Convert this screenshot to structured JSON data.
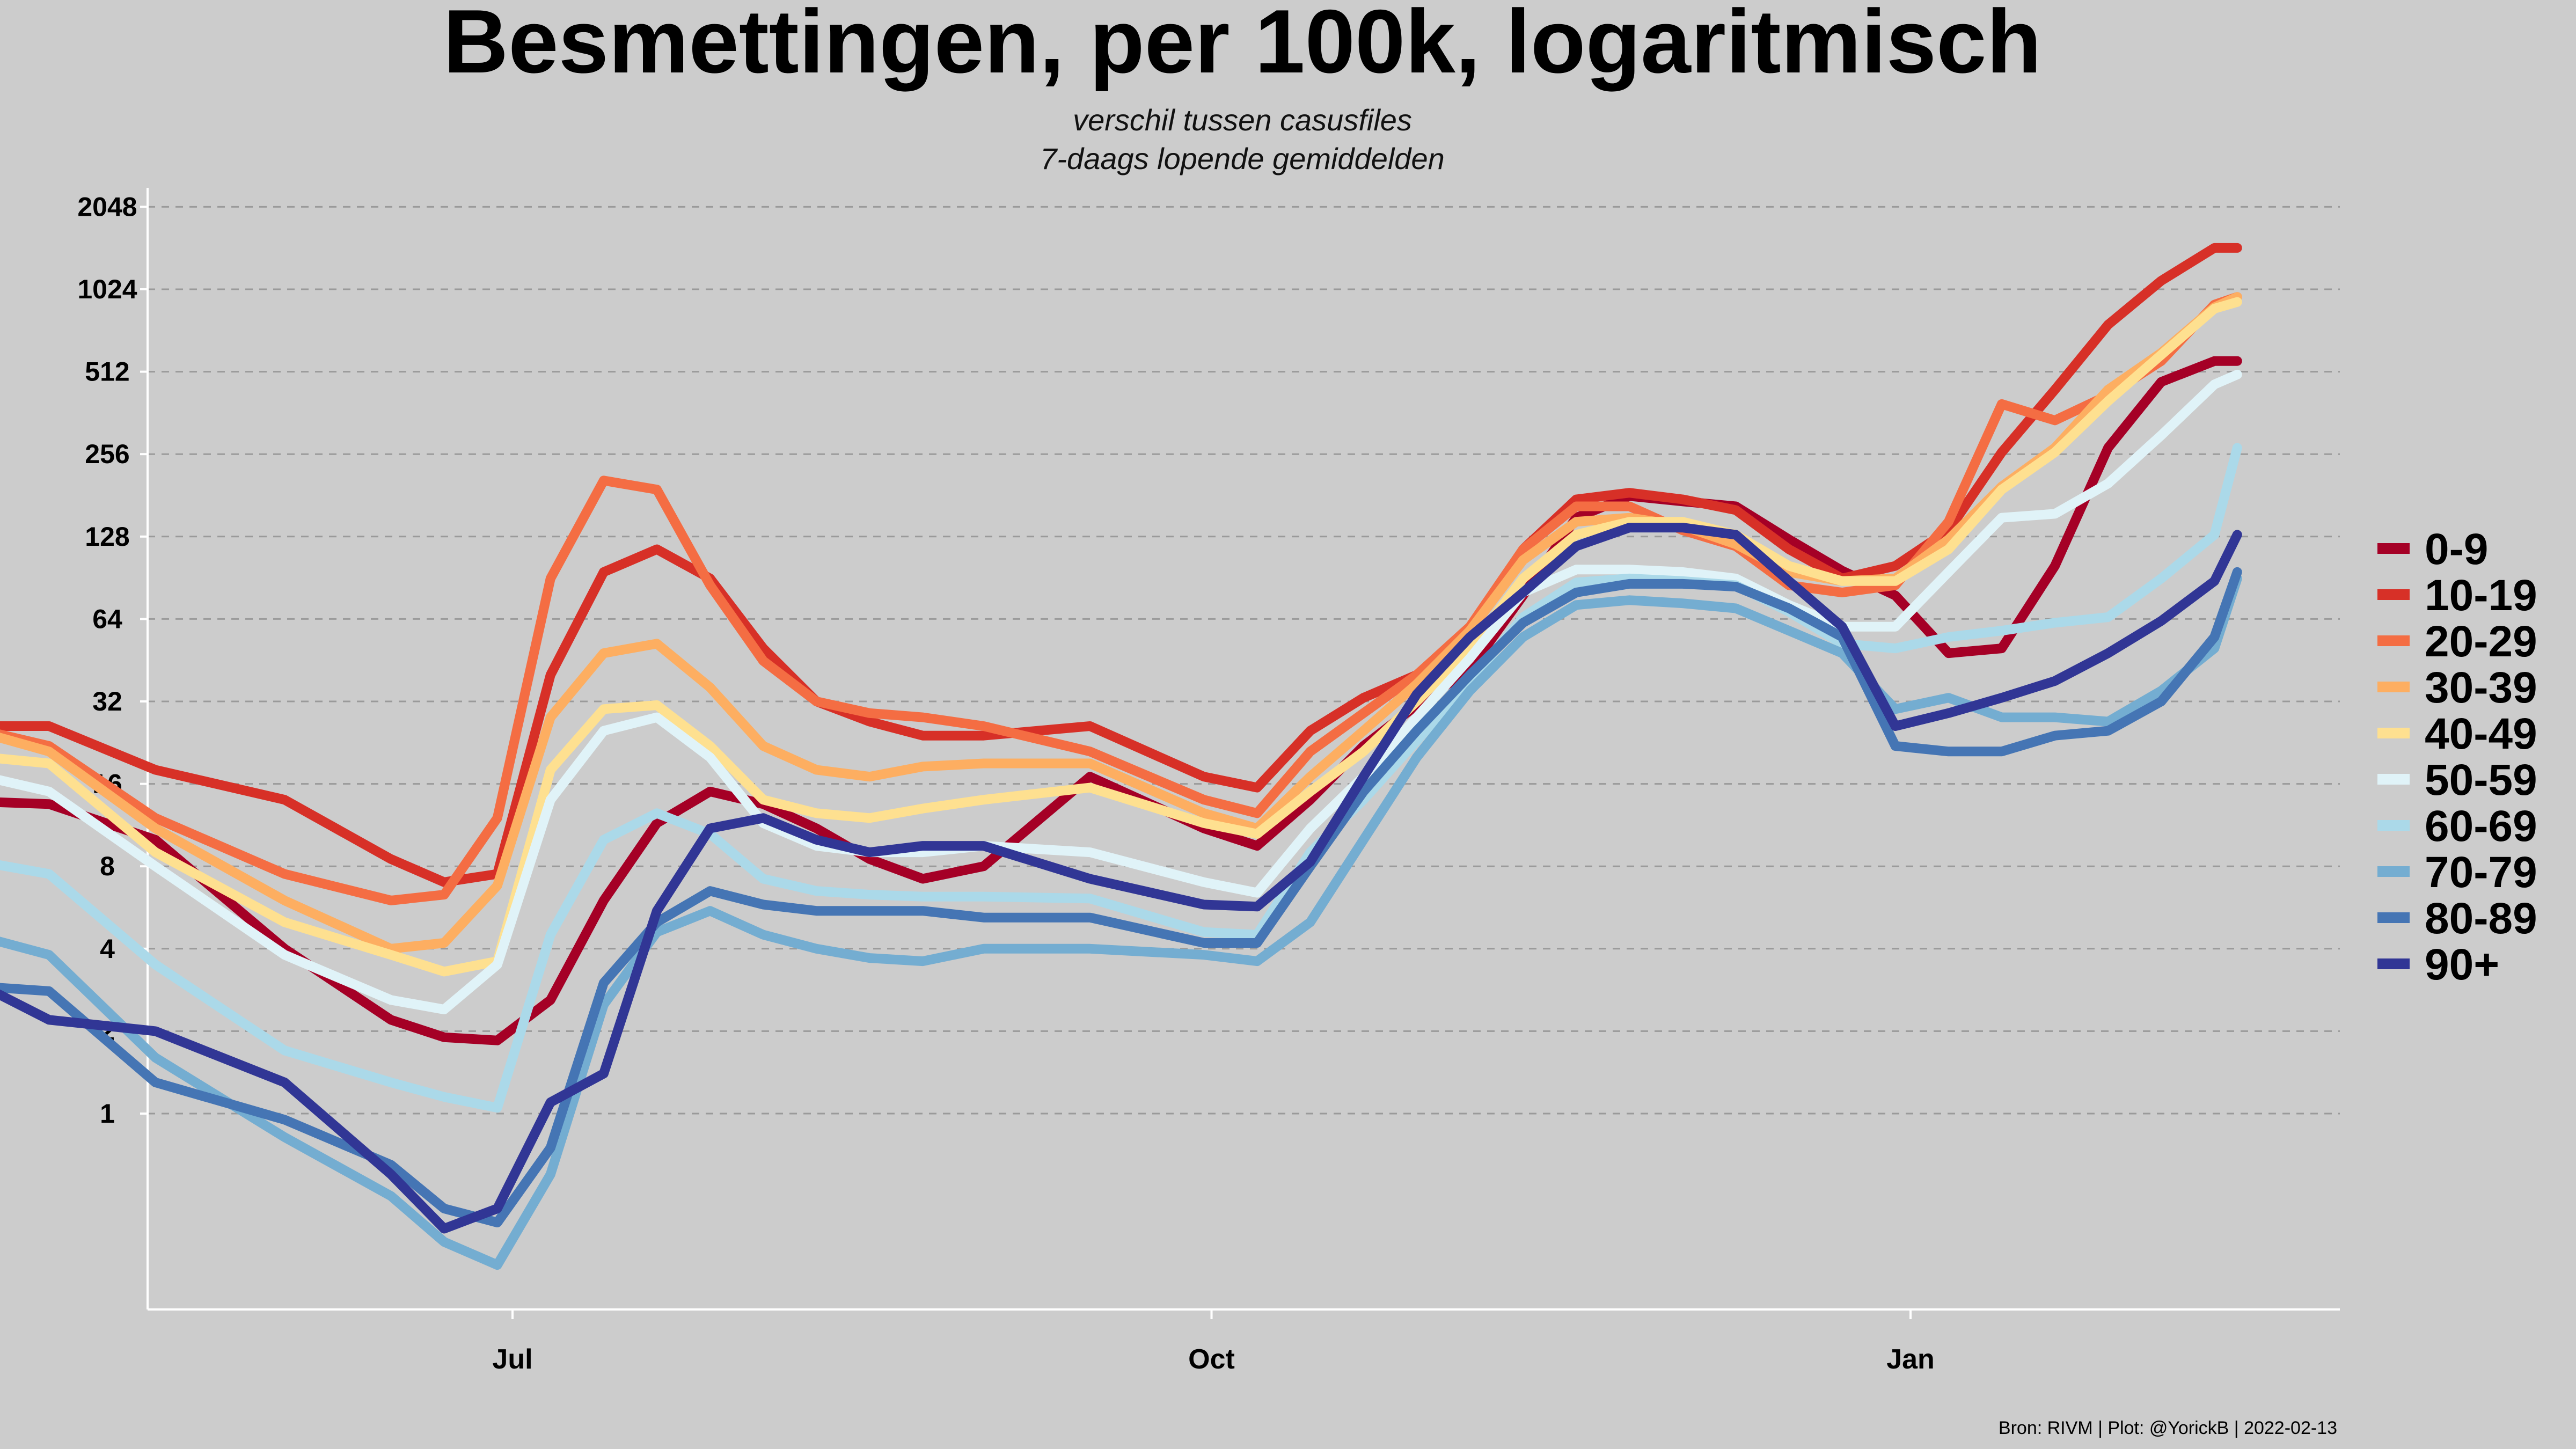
{
  "chart_data": {
    "type": "line",
    "title": "Besmettingen, per 100k, logaritmisch",
    "subtitle": [
      "verschil tussen casusfiles",
      "7-daags lopende gemiddelden"
    ],
    "caption": "Bron: RIVM | Plot: @YorickB  |  2022-02-13",
    "xlabel": "",
    "ylabel": "",
    "x_axis": {
      "type": "date",
      "range": [
        "2021-04-01",
        "2022-03-01"
      ],
      "ticks": [
        {
          "date": "2021-07-01",
          "label": "Jul"
        },
        {
          "date": "2021-10-01",
          "label": "Oct"
        },
        {
          "date": "2022-01-01",
          "label": "Jan"
        }
      ]
    },
    "y_axis": {
      "scale": "log2",
      "range": [
        0.22,
        2600
      ],
      "ticks": [
        {
          "value": 1,
          "label": "1"
        },
        {
          "value": 2,
          "label": "2"
        },
        {
          "value": 4,
          "label": "4"
        },
        {
          "value": 8,
          "label": "8"
        },
        {
          "value": 16,
          "label": "16"
        },
        {
          "value": 32,
          "label": "32"
        },
        {
          "value": 64,
          "label": "64"
        },
        {
          "value": 128,
          "label": "128"
        },
        {
          "value": 256,
          "label": "256"
        },
        {
          "value": 512,
          "label": "512"
        },
        {
          "value": 1024,
          "label": "1024"
        },
        {
          "value": 2048,
          "label": "2048"
        }
      ]
    },
    "grid": "horizontal dashed",
    "legend_position": "right",
    "x": [
      "2021-04-15",
      "2021-05-01",
      "2021-05-15",
      "2021-06-01",
      "2021-06-15",
      "2021-06-22",
      "2021-06-29",
      "2021-07-06",
      "2021-07-13",
      "2021-07-20",
      "2021-07-27",
      "2021-08-03",
      "2021-08-10",
      "2021-08-17",
      "2021-08-24",
      "2021-09-01",
      "2021-09-15",
      "2021-09-30",
      "2021-10-07",
      "2021-10-14",
      "2021-10-21",
      "2021-10-28",
      "2021-11-04",
      "2021-11-11",
      "2021-11-18",
      "2021-11-25",
      "2021-12-02",
      "2021-12-09",
      "2021-12-16",
      "2021-12-23",
      "2021-12-30",
      "2022-01-06",
      "2022-01-13",
      "2022-01-20",
      "2022-01-27",
      "2022-02-03",
      "2022-02-10",
      "2022-02-13"
    ],
    "series": [
      {
        "name": "0-9",
        "color": "#a50026",
        "values": [
          14,
          13.5,
          10,
          4,
          2.2,
          1.9,
          1.85,
          2.6,
          6,
          11.5,
          15,
          13.5,
          11,
          8.5,
          7.2,
          8,
          17,
          11,
          9.5,
          14,
          22,
          31,
          42,
          78,
          150,
          180,
          172,
          165,
          125,
          96,
          78,
          48,
          50,
          100,
          270,
          470,
          560,
          560
        ]
      },
      {
        "name": "10-19",
        "color": "#d73027",
        "values": [
          26,
          26,
          18,
          14,
          8.5,
          7,
          7.5,
          40,
          95,
          115,
          90,
          50,
          32,
          27,
          24,
          24,
          26,
          17,
          15.5,
          25,
          33,
          40,
          58,
          115,
          175,
          185,
          175,
          160,
          115,
          90,
          100,
          135,
          260,
          440,
          760,
          1100,
          1450,
          1450
        ]
      },
      {
        "name": "20-29",
        "color": "#f46d43",
        "values": [
          28,
          22,
          12,
          7.5,
          6,
          6.3,
          12,
          90,
          205,
          190,
          85,
          45,
          32,
          29,
          28,
          26,
          21,
          14,
          12.5,
          21,
          29,
          40,
          60,
          115,
          165,
          165,
          135,
          118,
          85,
          80,
          85,
          145,
          390,
          340,
          420,
          560,
          900,
          960
        ]
      },
      {
        "name": "30-39",
        "color": "#fdae61",
        "values": [
          28,
          21,
          11,
          6,
          4,
          4.2,
          6.8,
          28,
          48,
          52,
          36,
          22,
          18,
          17,
          18.5,
          19,
          19,
          12.5,
          11,
          17,
          25,
          37,
          58,
          105,
          145,
          150,
          140,
          120,
          95,
          88,
          90,
          125,
          195,
          270,
          440,
          600,
          880,
          960
        ]
      },
      {
        "name": "40-49",
        "color": "#fee090",
        "values": [
          21,
          19,
          9,
          5,
          3.8,
          3.3,
          3.6,
          18,
          30,
          31,
          22,
          14,
          12.5,
          12,
          13,
          14,
          15.5,
          11.5,
          10.5,
          15,
          21,
          32,
          50,
          90,
          130,
          145,
          145,
          130,
          100,
          88,
          88,
          115,
          190,
          260,
          400,
          590,
          870,
          920
        ]
      },
      {
        "name": "50-59",
        "color": "#e0f3f8",
        "values": [
          19,
          15,
          8,
          3.8,
          2.6,
          2.4,
          3.5,
          14,
          25,
          28,
          20,
          11.5,
          9.5,
          9,
          9,
          9.5,
          9,
          7,
          6.4,
          11,
          17,
          28,
          46,
          80,
          97,
          97,
          95,
          90,
          72,
          60,
          60,
          95,
          150,
          155,
          200,
          300,
          460,
          500
        ]
      },
      {
        "name": "60-69",
        "color": "#abd9e9",
        "values": [
          9,
          7.5,
          3.5,
          1.7,
          1.3,
          1.15,
          1.05,
          4.5,
          10,
          12.5,
          10.5,
          7.2,
          6.5,
          6.3,
          6.2,
          6.2,
          6.1,
          4.6,
          4.5,
          9,
          14,
          23,
          38,
          65,
          87,
          90,
          88,
          85,
          68,
          52,
          50,
          55,
          58,
          62,
          65,
          90,
          130,
          270
        ]
      },
      {
        "name": "70-79",
        "color": "#74add1",
        "values": [
          5,
          3.8,
          1.6,
          0.82,
          0.5,
          0.34,
          0.28,
          0.6,
          2.5,
          4.6,
          5.5,
          4.5,
          4,
          3.7,
          3.6,
          4,
          4,
          3.8,
          3.6,
          5,
          10,
          20,
          35,
          55,
          72,
          75,
          73,
          70,
          58,
          48,
          30,
          33,
          28,
          28,
          27,
          35,
          50,
          90
        ]
      },
      {
        "name": "80-89",
        "color": "#4575b4",
        "values": [
          3,
          2.8,
          1.3,
          0.95,
          0.65,
          0.45,
          0.4,
          0.75,
          3,
          5,
          6.5,
          5.8,
          5.5,
          5.5,
          5.5,
          5.2,
          5.2,
          4.2,
          4.2,
          8,
          15,
          25,
          40,
          62,
          80,
          86,
          86,
          84,
          70,
          55,
          22,
          21,
          21,
          24,
          25,
          32,
          55,
          95
        ]
      },
      {
        "name": "90+",
        "color": "#313695",
        "values": [
          3.7,
          2.2,
          2,
          1.3,
          0.6,
          0.38,
          0.45,
          1.1,
          1.4,
          5.5,
          11,
          12,
          10,
          9,
          9.5,
          9.5,
          7.2,
          5.8,
          5.7,
          8.3,
          17,
          34,
          55,
          80,
          118,
          138,
          138,
          130,
          88,
          60,
          26,
          29,
          33,
          38,
          48,
          63,
          88,
          130
        ]
      }
    ]
  }
}
